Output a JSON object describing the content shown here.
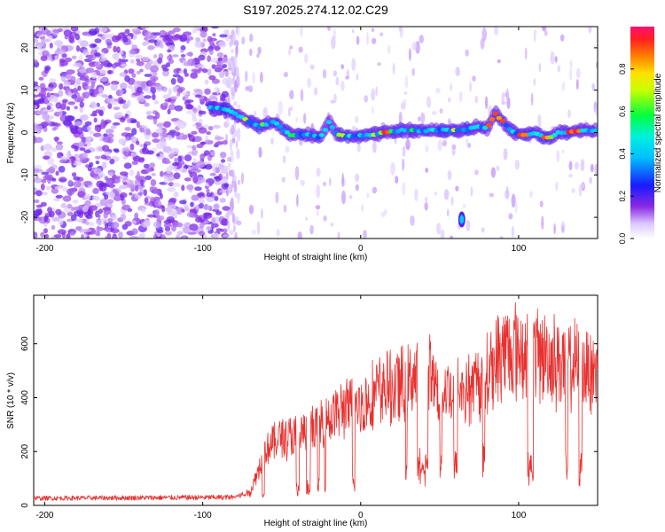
{
  "title": "S197.2025.274.12.02.C29",
  "chart_data": [
    {
      "type": "heatmap",
      "xlabel": "Height of straight line (km)",
      "ylabel": "Frequency (Hz)",
      "xlim": [
        -207,
        150
      ],
      "ylim": [
        -25,
        25
      ],
      "xticks": [
        -200,
        -100,
        0,
        100
      ],
      "yticks": [
        -20,
        -10,
        0,
        10,
        20
      ],
      "colorbar": {
        "label": "Normalized spectral amplitude",
        "range": [
          0,
          1
        ],
        "ticks": [
          "0.0",
          "0.2",
          "0.4",
          "0.6",
          "0.8"
        ],
        "tick_values": [
          0,
          0.2,
          0.4,
          0.6,
          0.8
        ]
      },
      "ridge": {
        "x": [
          -95,
          -85,
          -75,
          -65,
          -55,
          -45,
          -35,
          -25,
          -20,
          -15,
          -5,
          5,
          15,
          25,
          35,
          45,
          55,
          65,
          75,
          80,
          85,
          90,
          95,
          100,
          105,
          110,
          115,
          120,
          125,
          130,
          140,
          150
        ],
        "freq": [
          6,
          5.5,
          3.5,
          1.5,
          2.5,
          -0.5,
          -0.5,
          -1,
          2.5,
          -0.5,
          -1,
          -0.5,
          0,
          0.5,
          0.5,
          0.5,
          0.5,
          0.5,
          1.5,
          1,
          4.5,
          2.5,
          0.5,
          -0.5,
          -0.5,
          0,
          -1,
          -1,
          0,
          0,
          0.5,
          0.5
        ]
      },
      "secondary_blob": {
        "x": 64,
        "freq": -20.5
      }
    },
    {
      "type": "line",
      "xlabel": "Height of straight line (km)",
      "ylabel": "SNR (10 * v/v)",
      "xlim": [
        -207,
        150
      ],
      "ylim": [
        0,
        780
      ],
      "xticks": [
        -200,
        -100,
        0,
        100
      ],
      "yticks": [
        0,
        200,
        400,
        600
      ],
      "color": "#e8312f",
      "envelope": {
        "x": [
          -207,
          -80,
          -70,
          -60,
          -50,
          -40,
          -30,
          -20,
          -10,
          0,
          10,
          20,
          30,
          40,
          50,
          60,
          70,
          80,
          90,
          100,
          110,
          120,
          130,
          140,
          150
        ],
        "peak": [
          35,
          40,
          60,
          270,
          330,
          330,
          370,
          420,
          460,
          470,
          540,
          560,
          580,
          660,
          540,
          560,
          560,
          620,
          740,
          740,
          720,
          700,
          680,
          660,
          640
        ],
        "floor": [
          18,
          20,
          25,
          40,
          40,
          60,
          60,
          80,
          80,
          100,
          120,
          120,
          120,
          150,
          150,
          150,
          160,
          160,
          130,
          140,
          130,
          150,
          130,
          140,
          150
        ]
      }
    }
  ]
}
